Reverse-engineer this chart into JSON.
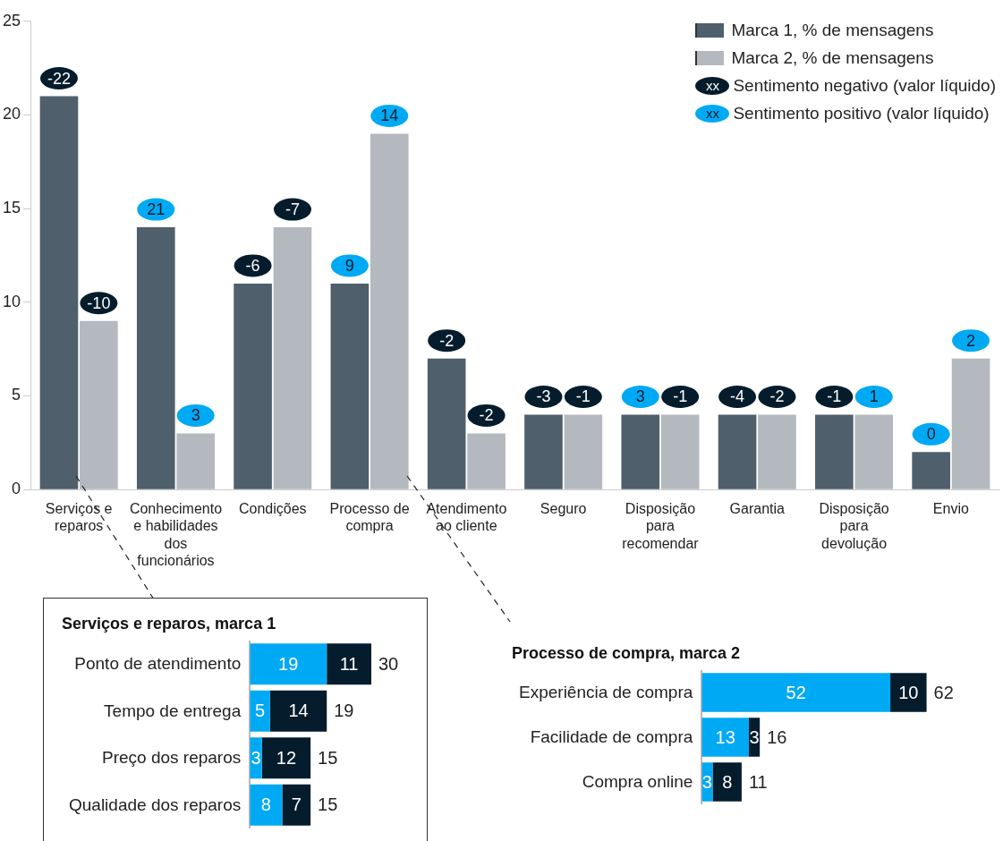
{
  "chart_data": [
    {
      "type": "bar",
      "categories": [
        "Serviços e reparos",
        "Conhecimento e habilidades dos funcionários",
        "Condições",
        "Processo de compra",
        "Atendimento ao cliente",
        "Seguro",
        "Disposição para recomendar",
        "Garantia",
        "Disposição para devolução",
        "Envio"
      ],
      "series": [
        {
          "name": "Marca 1, % de mensagens",
          "color": "#4f5f6b",
          "values": [
            21,
            14,
            11,
            11,
            7,
            4,
            4,
            4,
            4,
            2
          ]
        },
        {
          "name": "Marca 2, % de mensagens",
          "color": "#b3b9bf",
          "values": [
            9,
            3,
            14,
            19,
            3,
            4,
            4,
            4,
            4,
            7
          ]
        }
      ],
      "ylim": [
        0,
        25
      ],
      "yticks": [
        0,
        5,
        10,
        15,
        20,
        25
      ],
      "legend": "top right",
      "annotations": [
        "xx",
        "Sentimento negativo (valor líquido)",
        "xx",
        "Sentimento positivo (valor líquido)",
        {
          "text": "-22",
          "x": "Serviços e reparos",
          "y": 21
        },
        {
          "text": "-10",
          "x": "Serviços e reparos",
          "y": 9
        },
        {
          "text": "21",
          "x": "Conhecimento e habilidades dos funcionários",
          "y": 14
        },
        {
          "text": "3",
          "x": "Conhecimento e habilidades dos funcionários",
          "y": 3
        },
        {
          "text": "-6",
          "x": "Condições",
          "y": 11
        },
        {
          "text": "-7",
          "x": "Condições",
          "y": 14
        },
        {
          "text": "9",
          "x": "Processo de compra",
          "y": 11
        },
        {
          "text": "14",
          "x": "Processo de compra",
          "y": 19
        },
        {
          "text": "-2",
          "x": "Atendimento ao cliente",
          "y": 7
        },
        {
          "text": "-2",
          "x": "Atendimento ao cliente",
          "y": 3
        },
        {
          "text": "-3",
          "x": "Seguro",
          "y": 4
        },
        {
          "text": "-1",
          "x": "Seguro",
          "y": 4
        },
        {
          "text": "3",
          "x": "Disposição para recomendar",
          "y": 4
        },
        {
          "text": "-1",
          "x": "Disposição para recomendar",
          "y": 4
        },
        {
          "text": "-4",
          "x": "Garantia",
          "y": 4
        },
        {
          "text": "-2",
          "x": "Garantia",
          "y": 4
        },
        {
          "text": "-1",
          "x": "Disposição para devolução",
          "y": 4
        },
        {
          "text": "1",
          "x": "Disposição para devolução",
          "y": 4
        },
        {
          "text": "0",
          "x": "Envio",
          "y": 2
        },
        {
          "text": "2",
          "x": "Envio",
          "y": 7
        }
      ]
    },
    {
      "type": "bar",
      "title": "Serviços e reparos, marca 1",
      "orientation": "horizontal",
      "stacked": true,
      "data_labels": true,
      "categories": [
        "Ponto de atendimento",
        "Tempo de entrega",
        "Preço dos reparos",
        "Qualidade dos reparos"
      ],
      "series": [
        {
          "color": "#00a9f4",
          "values": [
            19,
            5,
            3,
            8
          ]
        },
        {
          "color": "#051c2c",
          "values": [
            11,
            14,
            12,
            7
          ]
        }
      ],
      "totals": [
        "30",
        "19",
        "15",
        "15"
      ]
    },
    {
      "type": "bar",
      "title": "Processo de compra, marca 2",
      "orientation": "horizontal",
      "stacked": true,
      "data_labels": true,
      "categories": [
        "Experiência de compra",
        "Facilidade de compra",
        "Compra online"
      ],
      "series": [
        {
          "color": "#00a9f4",
          "values": [
            52,
            13,
            3
          ]
        },
        {
          "color": "#051c2c",
          "values": [
            10,
            3,
            8
          ]
        }
      ],
      "totals": [
        "62",
        "16",
        "11"
      ]
    }
  ]
}
